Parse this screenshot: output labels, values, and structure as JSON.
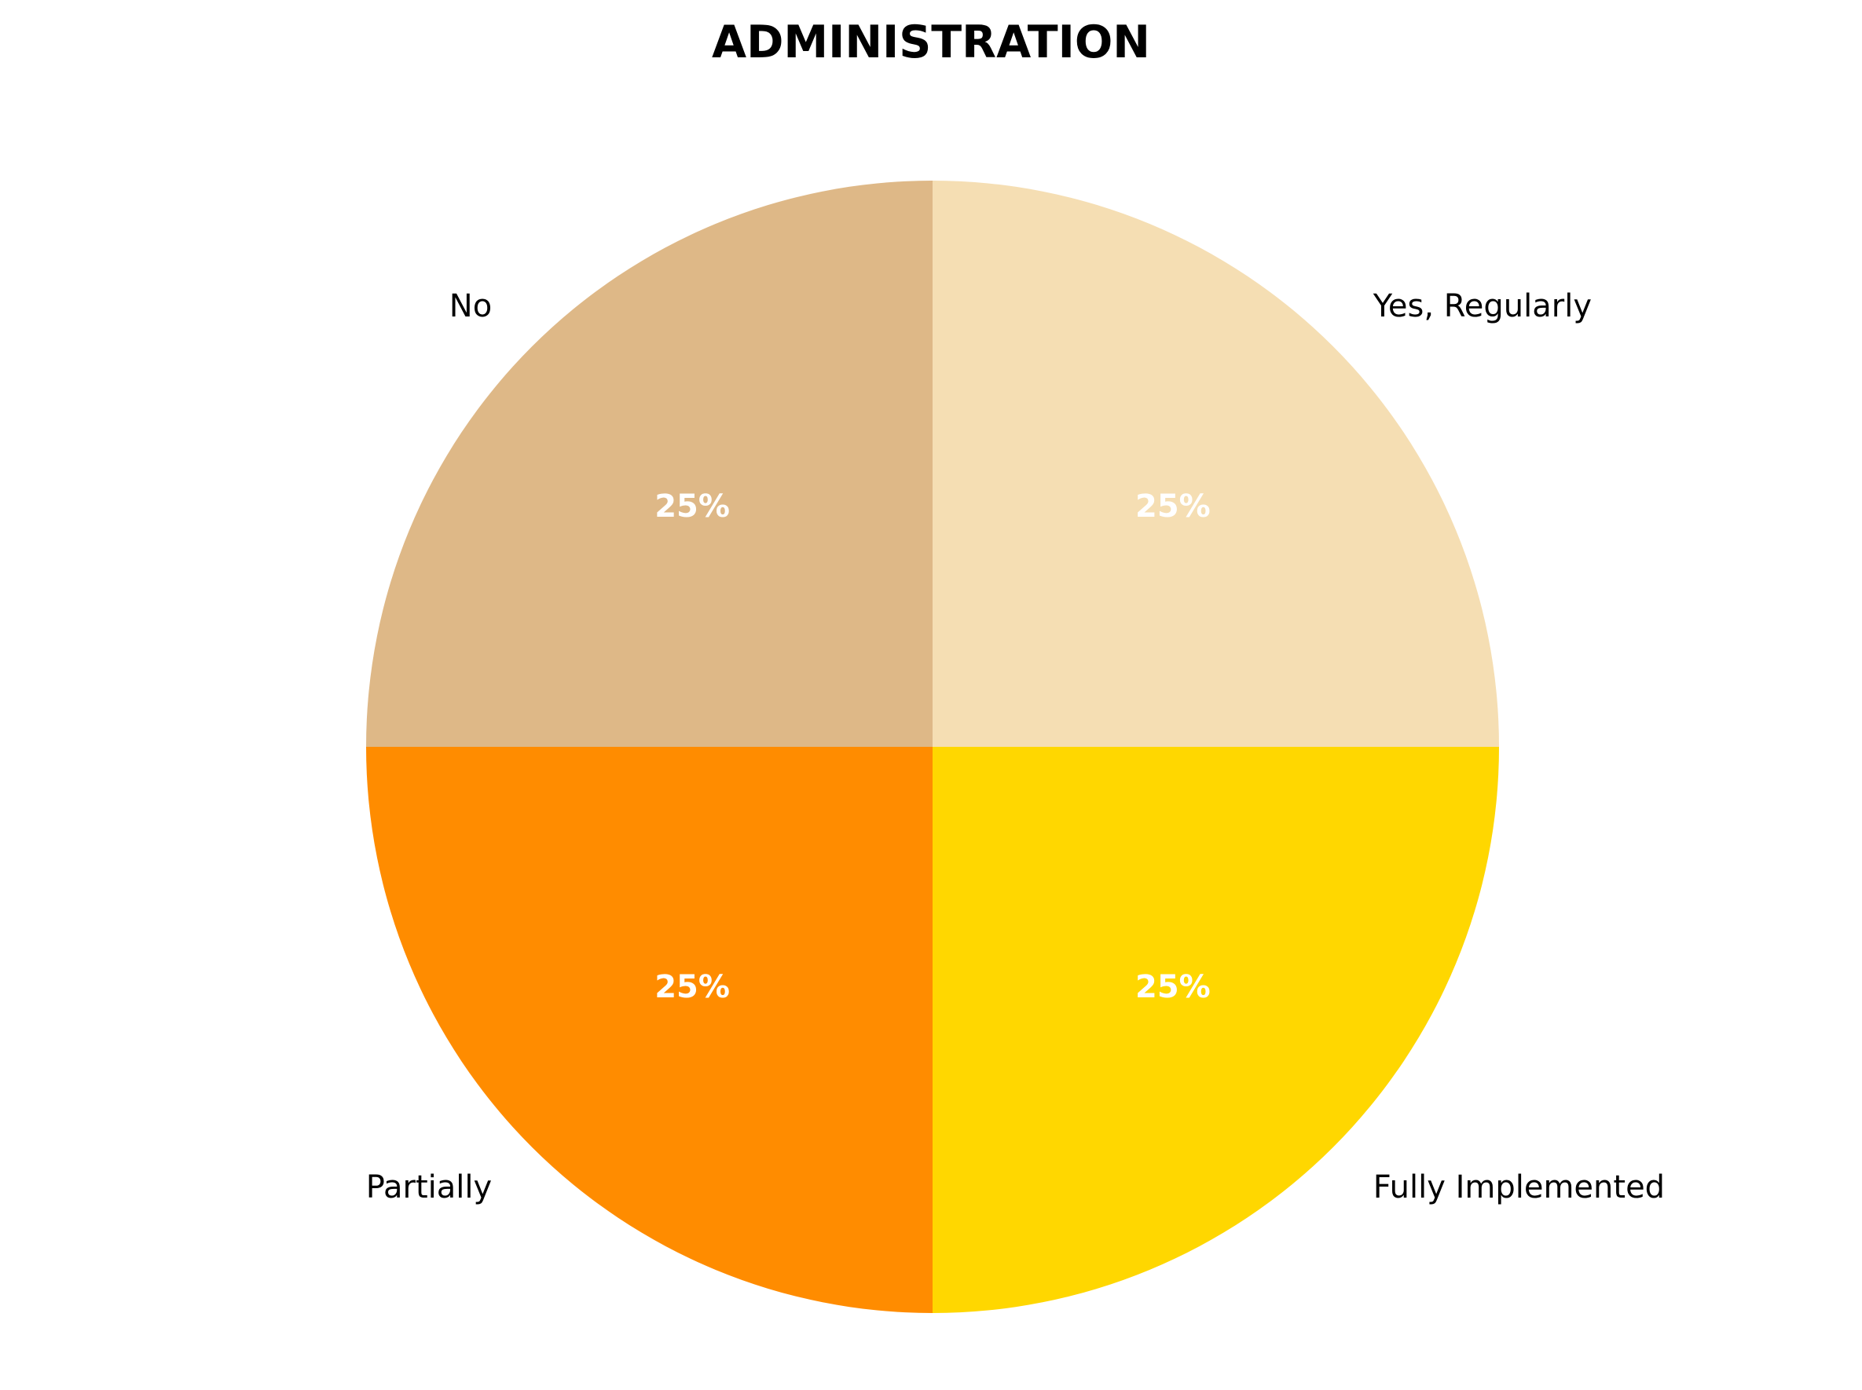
{
  "chart_data": {
    "type": "pie",
    "title": "ADMINISTRATION",
    "categories": [
      "No",
      "Partially",
      "Fully Implemented",
      "Yes, Regularly"
    ],
    "values": [
      25,
      25,
      25,
      25
    ],
    "value_labels": [
      "25%",
      "25%",
      "25%",
      "25%"
    ],
    "colors": [
      "#DEB887",
      "#FF8C00",
      "#FFD700",
      "#F5DEB3"
    ],
    "start_angle_deg": 90,
    "direction": "counterclockwise",
    "legend": "none"
  }
}
